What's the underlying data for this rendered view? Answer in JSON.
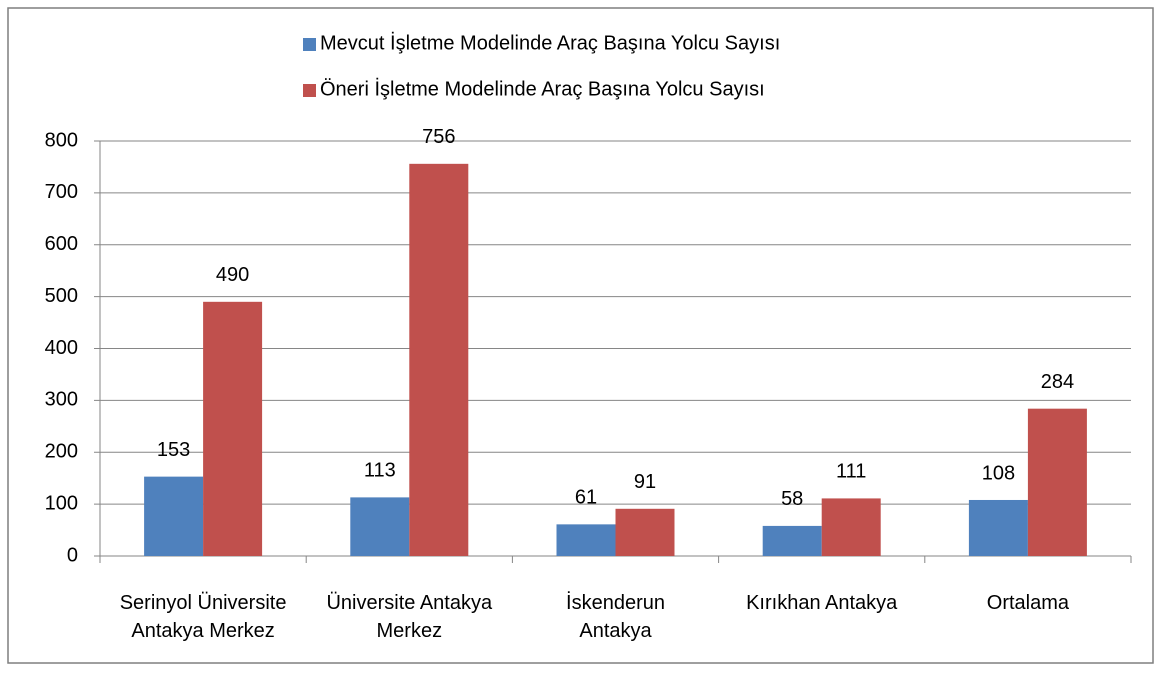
{
  "chart_data": {
    "type": "bar",
    "categories": [
      "Serinyol Üniversite\nAntakya Merkez",
      "Üniversite Antakya\nMerkez",
      "İskenderun\nAntakya",
      "Kırıkhan Antakya",
      "Ortalama"
    ],
    "series": [
      {
        "name": "Mevcut İşletme Modelinde Araç Başına Yolcu Sayısı",
        "color": "#4f81bd",
        "values": [
          153,
          113,
          61,
          58,
          108
        ]
      },
      {
        "name": "Öneri İşletme Modelinde Araç Başına Yolcu Sayısı",
        "color": "#c0504d",
        "values": [
          490,
          756,
          91,
          111,
          284
        ]
      }
    ],
    "ylim": [
      0,
      800
    ],
    "yticks": [
      0,
      100,
      200,
      300,
      400,
      500,
      600,
      700,
      800
    ],
    "grid": true,
    "legend": "top"
  }
}
